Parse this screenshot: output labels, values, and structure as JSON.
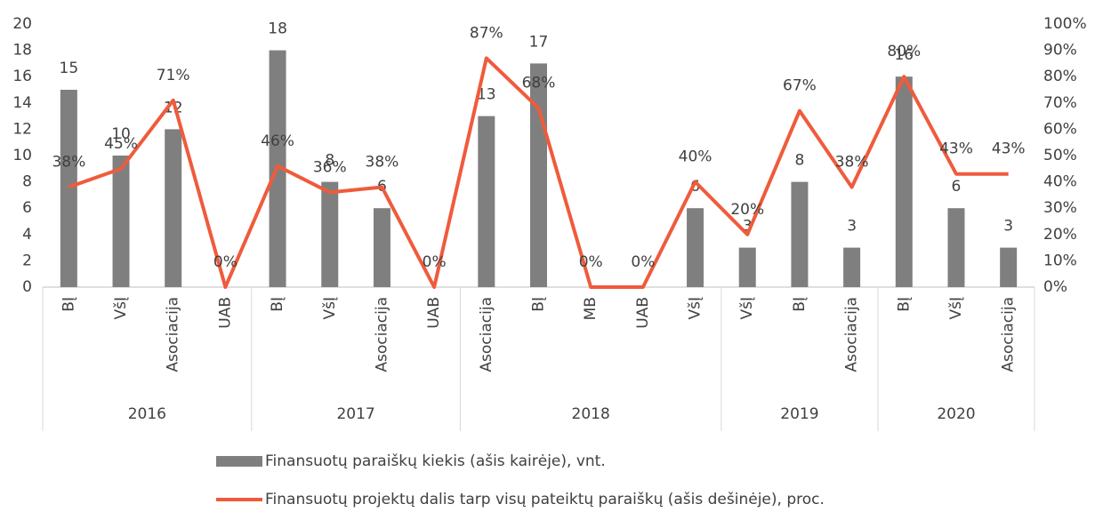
{
  "chart_data": {
    "type": "bar",
    "groups": [
      {
        "label": "2016",
        "categories": [
          "BĮ",
          "VšĮ",
          "Asociacija",
          "UAB"
        ]
      },
      {
        "label": "2017",
        "categories": [
          "BĮ",
          "VšĮ",
          "Asociacija",
          "UAB"
        ]
      },
      {
        "label": "2018",
        "categories": [
          "Asociacija",
          "BĮ",
          "MB",
          "UAB",
          "VšĮ"
        ]
      },
      {
        "label": "2019",
        "categories": [
          "VšĮ",
          "BĮ",
          "Asociacija"
        ]
      },
      {
        "label": "2020",
        "categories": [
          "BĮ",
          "VšĮ",
          "Asociacija"
        ]
      }
    ],
    "series": [
      {
        "name": "Finansuotų paraiškų kiekis (ašis kairėje), vnt.",
        "type": "bar",
        "color": "#7f7f7f",
        "values": [
          15,
          10,
          12,
          null,
          18,
          8,
          6,
          null,
          13,
          17,
          null,
          null,
          6,
          3,
          8,
          3,
          16,
          6,
          3
        ]
      },
      {
        "name": "Finansuotų projektų dalis tarp visų pateiktų paraiškų (ašis dešinėje), proc.",
        "type": "line",
        "axis": "y2",
        "color": "#ef5b3c",
        "values": [
          38,
          45,
          71,
          0,
          46,
          36,
          38,
          0,
          87,
          68,
          0,
          0,
          40,
          20,
          67,
          38,
          80,
          43,
          43
        ],
        "value_labels": [
          "38%",
          "45%",
          "71%",
          "0%",
          "46%",
          "36%",
          "38%",
          "0%",
          "87%",
          "68%",
          "0%",
          "0%",
          "40%",
          "20%",
          "67%",
          "38%",
          "80%",
          "43%",
          "43%"
        ]
      }
    ],
    "ylim": [
      0,
      20
    ],
    "yticks": [
      0,
      2,
      4,
      6,
      8,
      10,
      12,
      14,
      16,
      18,
      20
    ],
    "y2lim": [
      0,
      100
    ],
    "y2ticks": [
      {
        "value": 0,
        "label": "0%"
      },
      {
        "value": 10,
        "label": "10%"
      },
      {
        "value": 20,
        "label": "20%"
      },
      {
        "value": 30,
        "label": "30%"
      },
      {
        "value": 40,
        "label": "40%"
      },
      {
        "value": 50,
        "label": "50%"
      },
      {
        "value": 60,
        "label": "60%"
      },
      {
        "value": 70,
        "label": "70%"
      },
      {
        "value": 80,
        "label": "80%"
      },
      {
        "value": 90,
        "label": "90%"
      },
      {
        "value": 100,
        "label": "100%"
      }
    ],
    "legend": "bottom"
  }
}
